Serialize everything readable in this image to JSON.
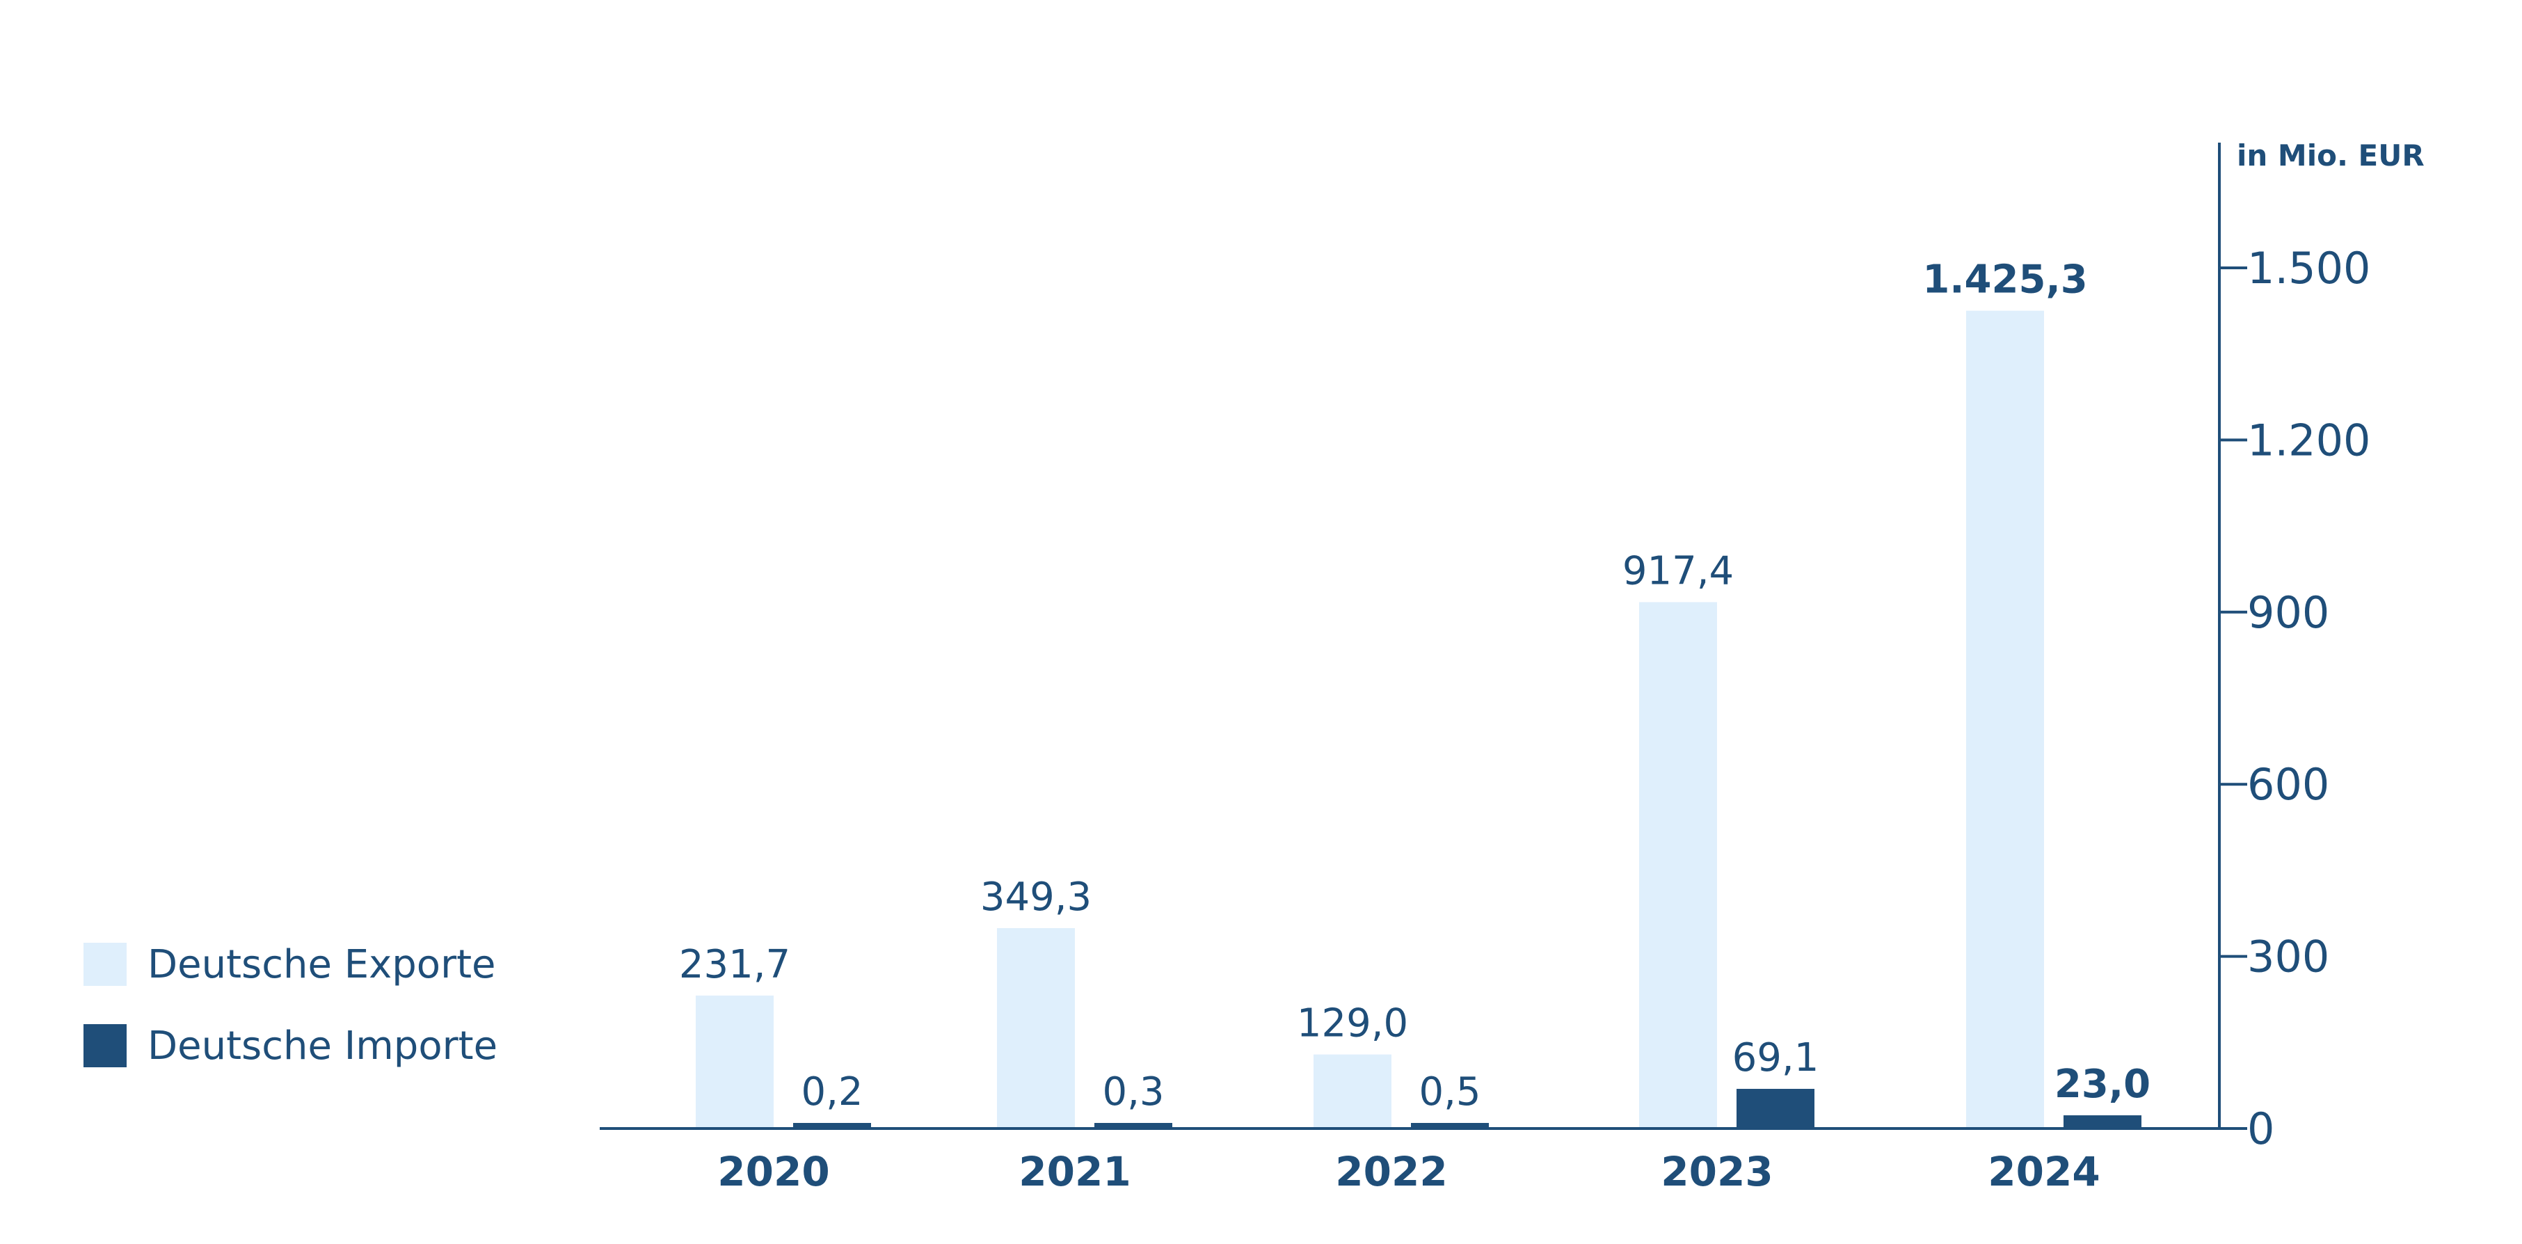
{
  "chart_data": {
    "type": "bar",
    "categories": [
      "2020",
      "2021",
      "2022",
      "2023",
      "2024"
    ],
    "series": [
      {
        "name": "Deutsche Exporte",
        "values": [
          231.7,
          349.3,
          129.0,
          917.4,
          1425.3
        ],
        "labels": [
          "231,7",
          "349,3",
          "129,0",
          "917,4",
          "1.425,3"
        ],
        "color": "#dfeffc"
      },
      {
        "name": "Deutsche Importe",
        "values": [
          0.2,
          0.3,
          0.5,
          69.1,
          23.0
        ],
        "labels": [
          "0,2",
          "0,3",
          "0,5",
          "69,1",
          "23,0"
        ],
        "color": "#1f4e79"
      }
    ],
    "bold_categories": [
      "2024"
    ],
    "y_unit": "in Mio. EUR",
    "yticks": [
      0,
      300,
      600,
      900,
      1200,
      1500
    ],
    "ytick_labels": [
      "0",
      "300",
      "600",
      "900",
      "1.200",
      "1.500"
    ],
    "ylim": [
      0,
      1650
    ],
    "y_axis_side": "right",
    "grid": false,
    "legend_position": "left",
    "axis_color": "#1f4e79"
  }
}
